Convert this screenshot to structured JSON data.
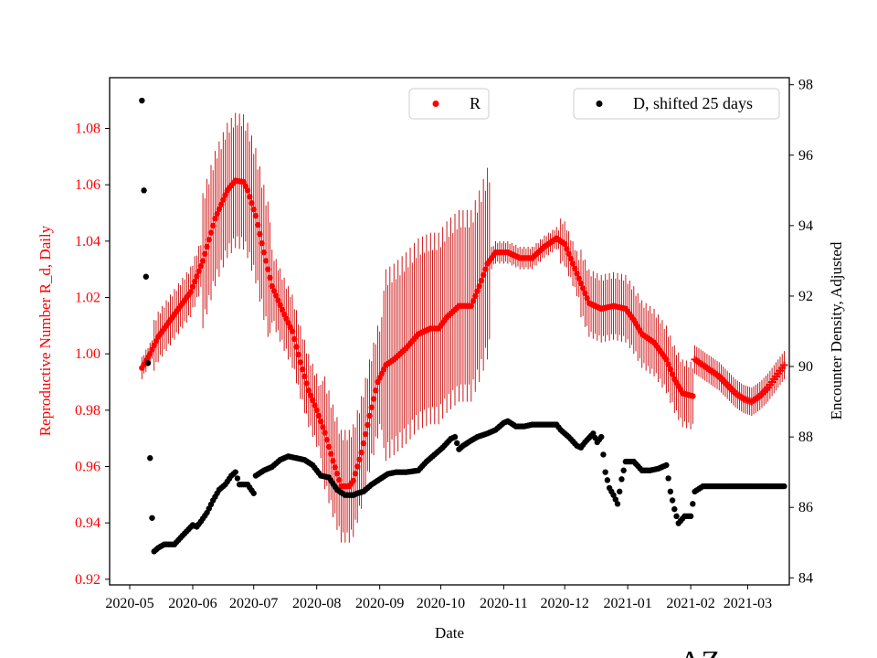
{
  "chart_data": {
    "type": "scatter",
    "xlabel": "Date",
    "ylabel_left": "Reproductive Number R_d, Daily",
    "ylabel_right": "Encounter Density, Adjusted",
    "region_label": "AZ",
    "x_tick_labels": [
      "2020-05",
      "2020-06",
      "2020-07",
      "2020-08",
      "2020-09",
      "2020-10",
      "2020-11",
      "2020-12",
      "2021-01",
      "2021-02",
      "2021-03"
    ],
    "x_tick_days": [
      0,
      31,
      61,
      92,
      123,
      153,
      184,
      214,
      245,
      276,
      304
    ],
    "y_left_ticks": [
      "0.92",
      "0.94",
      "0.96",
      "0.98",
      "1.00",
      "1.02",
      "1.04",
      "1.06",
      "1.08"
    ],
    "y_right_ticks": [
      "84",
      "86",
      "88",
      "90",
      "92",
      "94",
      "96",
      "98"
    ],
    "ylim_left": [
      0.918,
      1.098
    ],
    "ylim_right": [
      83.8,
      98.2
    ],
    "xlim_days": [
      -17,
      326
    ],
    "colors": {
      "R": "#ff0000",
      "D": "#000000"
    },
    "legend_R": "R",
    "legend_D": "D, shifted 25 days",
    "R_keypoints": [
      [
        6,
        0.995
      ],
      [
        10,
        1.0
      ],
      [
        14,
        1.006
      ],
      [
        20,
        1.012
      ],
      [
        26,
        1.018
      ],
      [
        30,
        1.022
      ],
      [
        36,
        1.033
      ],
      [
        42,
        1.048
      ],
      [
        48,
        1.058
      ],
      [
        52,
        1.0615
      ],
      [
        56,
        1.061
      ],
      [
        58,
        1.058
      ],
      [
        62,
        1.049
      ],
      [
        66,
        1.036
      ],
      [
        70,
        1.024
      ],
      [
        76,
        1.014
      ],
      [
        80,
        1.008
      ],
      [
        84,
        0.997
      ],
      [
        88,
        0.987
      ],
      [
        92,
        0.98
      ],
      [
        96,
        0.972
      ],
      [
        100,
        0.962
      ],
      [
        104,
        0.953
      ],
      [
        108,
        0.953
      ],
      [
        110,
        0.955
      ],
      [
        114,
        0.965
      ],
      [
        118,
        0.978
      ],
      [
        122,
        0.99
      ],
      [
        126,
        0.996
      ],
      [
        130,
        0.998
      ],
      [
        136,
        1.002
      ],
      [
        142,
        1.007
      ],
      [
        148,
        1.009
      ],
      [
        152,
        1.009
      ],
      [
        156,
        1.013
      ],
      [
        162,
        1.017
      ],
      [
        168,
        1.017
      ],
      [
        172,
        1.024
      ],
      [
        176,
        1.032
      ],
      [
        180,
        1.036
      ],
      [
        186,
        1.036
      ],
      [
        192,
        1.034
      ],
      [
        198,
        1.034
      ],
      [
        204,
        1.038
      ],
      [
        210,
        1.041
      ],
      [
        214,
        1.039
      ],
      [
        218,
        1.032
      ],
      [
        222,
        1.025
      ],
      [
        226,
        1.018
      ],
      [
        232,
        1.016
      ],
      [
        238,
        1.017
      ],
      [
        244,
        1.016
      ],
      [
        248,
        1.012
      ],
      [
        252,
        1.007
      ],
      [
        258,
        1.004
      ],
      [
        264,
        0.998
      ],
      [
        268,
        0.991
      ],
      [
        272,
        0.986
      ],
      [
        277,
        0.985
      ]
    ],
    "R_late_keypoints": [
      [
        278,
        0.998
      ],
      [
        282,
        0.996
      ],
      [
        286,
        0.994
      ],
      [
        290,
        0.992
      ],
      [
        294,
        0.989
      ],
      [
        298,
        0.986
      ],
      [
        302,
        0.984
      ],
      [
        306,
        0.983
      ],
      [
        310,
        0.985
      ],
      [
        314,
        0.988
      ],
      [
        318,
        0.992
      ],
      [
        322,
        0.996
      ]
    ],
    "D_keypoints": [
      [
        6,
        97.55
      ],
      [
        7,
        95.0
      ],
      [
        8,
        92.55
      ],
      [
        9,
        90.1
      ],
      [
        10,
        87.4
      ],
      [
        11,
        85.7
      ],
      [
        12,
        84.75
      ],
      [
        14,
        84.85
      ],
      [
        17,
        84.95
      ],
      [
        22,
        84.95
      ],
      [
        26,
        85.2
      ],
      [
        31,
        85.5
      ],
      [
        33,
        85.45
      ],
      [
        35,
        85.6
      ],
      [
        38,
        85.85
      ],
      [
        41,
        86.2
      ],
      [
        44,
        86.5
      ],
      [
        47,
        86.65
      ],
      [
        50,
        86.9
      ],
      [
        52,
        87.0
      ],
      [
        54,
        86.65
      ],
      [
        58,
        86.65
      ],
      [
        61,
        86.4
      ],
      [
        62,
        86.9
      ],
      [
        66,
        87.05
      ],
      [
        70,
        87.15
      ],
      [
        74,
        87.35
      ],
      [
        78,
        87.45
      ],
      [
        82,
        87.4
      ],
      [
        86,
        87.35
      ],
      [
        90,
        87.2
      ],
      [
        94,
        86.9
      ],
      [
        98,
        86.85
      ],
      [
        102,
        86.5
      ],
      [
        106,
        86.35
      ],
      [
        110,
        86.35
      ],
      [
        112,
        86.4
      ],
      [
        115,
        86.45
      ],
      [
        119,
        86.65
      ],
      [
        123,
        86.8
      ],
      [
        127,
        86.95
      ],
      [
        131,
        87.0
      ],
      [
        136,
        87.0
      ],
      [
        142,
        87.05
      ],
      [
        146,
        87.3
      ],
      [
        150,
        87.5
      ],
      [
        154,
        87.7
      ],
      [
        158,
        87.95
      ],
      [
        160,
        88.0
      ],
      [
        162,
        87.65
      ],
      [
        164,
        87.75
      ],
      [
        168,
        87.9
      ],
      [
        171,
        88.0
      ],
      [
        176,
        88.1
      ],
      [
        180,
        88.2
      ],
      [
        184,
        88.4
      ],
      [
        186,
        88.45
      ],
      [
        190,
        88.3
      ],
      [
        194,
        88.3
      ],
      [
        198,
        88.35
      ],
      [
        204,
        88.35
      ],
      [
        210,
        88.35
      ],
      [
        212,
        88.2
      ],
      [
        216,
        88.0
      ],
      [
        220,
        87.75
      ],
      [
        222,
        87.7
      ],
      [
        224,
        87.85
      ],
      [
        228,
        88.1
      ],
      [
        230,
        87.85
      ],
      [
        232,
        88.0
      ],
      [
        234,
        87.0
      ],
      [
        236,
        86.55
      ],
      [
        238,
        86.35
      ],
      [
        240,
        86.1
      ],
      [
        242,
        86.8
      ],
      [
        244,
        87.3
      ],
      [
        248,
        87.3
      ],
      [
        252,
        87.05
      ],
      [
        256,
        87.05
      ],
      [
        260,
        87.1
      ],
      [
        264,
        87.2
      ],
      [
        266,
        86.45
      ],
      [
        268,
        85.95
      ],
      [
        270,
        85.55
      ],
      [
        273,
        85.75
      ],
      [
        276,
        85.75
      ],
      [
        278,
        86.45
      ],
      [
        282,
        86.6
      ],
      [
        290,
        86.6
      ],
      [
        300,
        86.6
      ],
      [
        310,
        86.6
      ],
      [
        322,
        86.6
      ]
    ]
  }
}
